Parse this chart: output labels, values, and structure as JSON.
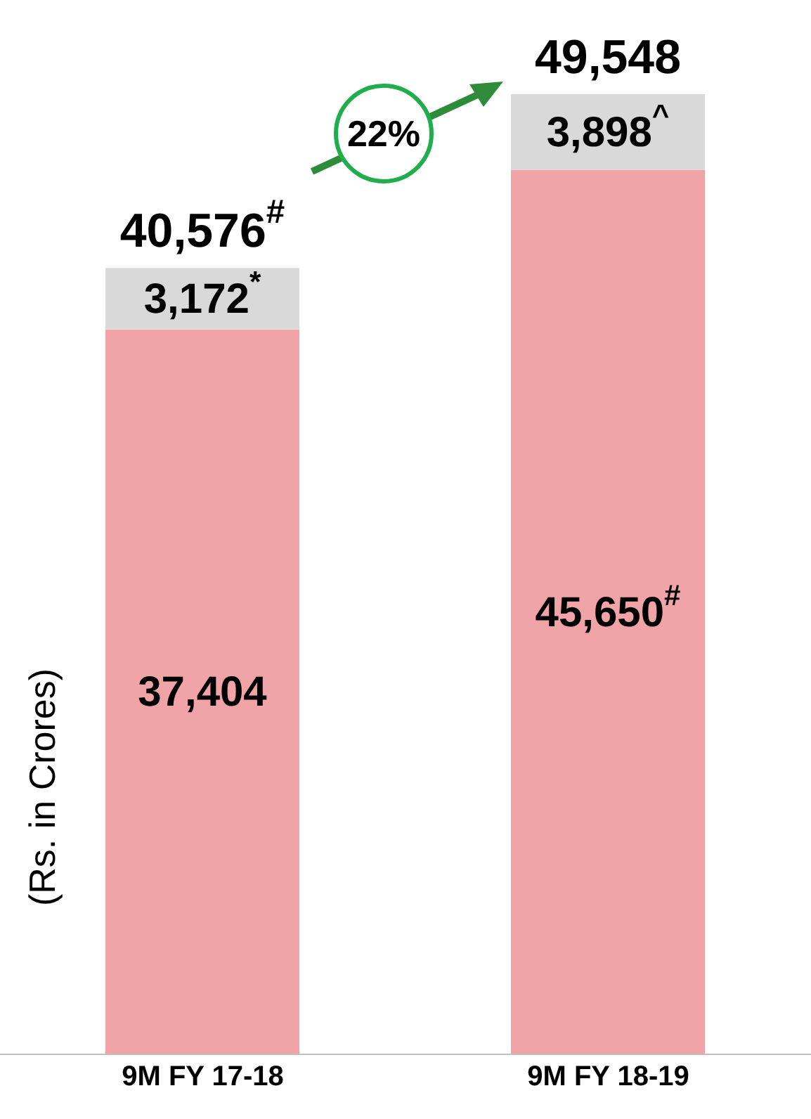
{
  "chart_data": {
    "type": "bar",
    "stacked": true,
    "ylabel": "(Rs. in Crores)",
    "categories": [
      "9M FY 17-18",
      "9M FY 18-19"
    ],
    "series": [
      {
        "color": "#f0a4a8",
        "values": [
          37404,
          45650
        ],
        "value_labels": [
          "37,404",
          "45,650$^{#}$"
        ]
      },
      {
        "color": "#d9d9d9",
        "values": [
          3172,
          3898
        ],
        "value_labels": [
          "3,172$^{*}$",
          "3,898$^{^}$"
        ]
      }
    ],
    "totals": [
      "40,576$^{#}$",
      "49,548"
    ],
    "annotations": [
      "22%"
    ]
  }
}
